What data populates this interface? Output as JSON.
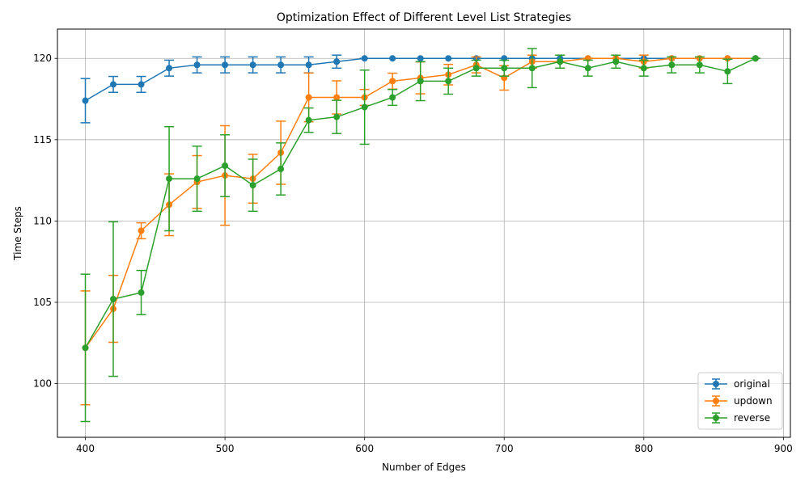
{
  "chart_data": {
    "type": "line",
    "title": "Optimization Effect of Different Level List Strategies",
    "xlabel": "Number of Edges",
    "ylabel": "Time Steps",
    "xlim": [
      380,
      905
    ],
    "ylim": [
      96.7,
      121.8
    ],
    "xticks": [
      400,
      500,
      600,
      700,
      800,
      900
    ],
    "yticks": [
      100,
      105,
      110,
      115,
      120
    ],
    "grid": true,
    "legend_position": "bottom-right",
    "x": [
      400,
      420,
      440,
      460,
      480,
      500,
      520,
      540,
      560,
      580,
      600,
      620,
      640,
      660,
      680,
      700,
      720,
      740,
      760,
      780,
      800,
      820,
      840,
      860,
      880
    ],
    "series": [
      {
        "name": "original",
        "color": "#1f77b4",
        "values": [
          117.4,
          118.4,
          118.4,
          119.4,
          119.6,
          119.6,
          119.6,
          119.6,
          119.6,
          119.8,
          120.0,
          120.0,
          120.0,
          120.0,
          120.0,
          120.0,
          120.0,
          120.0,
          120.0,
          120.0,
          120.0,
          120.0,
          120.0,
          120.0,
          120.0
        ],
        "errors": [
          1.36,
          0.49,
          0.49,
          0.49,
          0.49,
          0.49,
          0.49,
          0.49,
          0.49,
          0.4,
          0.0,
          0.0,
          0.0,
          0.0,
          0.0,
          0.0,
          0.0,
          0.0,
          0.0,
          0.0,
          0.0,
          0.0,
          0.0,
          0.0,
          0.0
        ]
      },
      {
        "name": "updown",
        "color": "#ff7f0e",
        "values": [
          102.2,
          104.6,
          109.4,
          111.0,
          112.4,
          112.8,
          112.6,
          114.2,
          117.6,
          117.6,
          117.6,
          118.6,
          118.8,
          119.0,
          119.6,
          118.8,
          119.8,
          119.8,
          120.0,
          120.0,
          119.8,
          120.0,
          120.0,
          120.0,
          120.0
        ],
        "errors": [
          3.5,
          2.06,
          0.49,
          1.9,
          1.62,
          3.06,
          1.5,
          1.94,
          1.5,
          1.02,
          0.49,
          0.49,
          0.98,
          0.63,
          0.49,
          0.75,
          0.4,
          0.4,
          0.0,
          0.0,
          0.4,
          0.0,
          0.0,
          0.0,
          0.0
        ]
      },
      {
        "name": "reverse",
        "color": "#2ca02c",
        "values": [
          102.2,
          105.2,
          105.6,
          112.6,
          112.6,
          113.4,
          112.2,
          113.2,
          116.2,
          116.4,
          117.0,
          117.6,
          118.6,
          118.6,
          119.4,
          119.4,
          119.4,
          119.8,
          119.4,
          119.8,
          119.4,
          119.6,
          119.6,
          119.2,
          120.0
        ],
        "errors": [
          4.53,
          4.75,
          1.36,
          3.2,
          2.0,
          1.9,
          1.6,
          1.6,
          0.75,
          1.02,
          2.28,
          0.49,
          1.2,
          0.8,
          0.49,
          0.49,
          1.2,
          0.4,
          0.49,
          0.4,
          0.49,
          0.49,
          0.49,
          0.75,
          0.0
        ]
      }
    ]
  }
}
